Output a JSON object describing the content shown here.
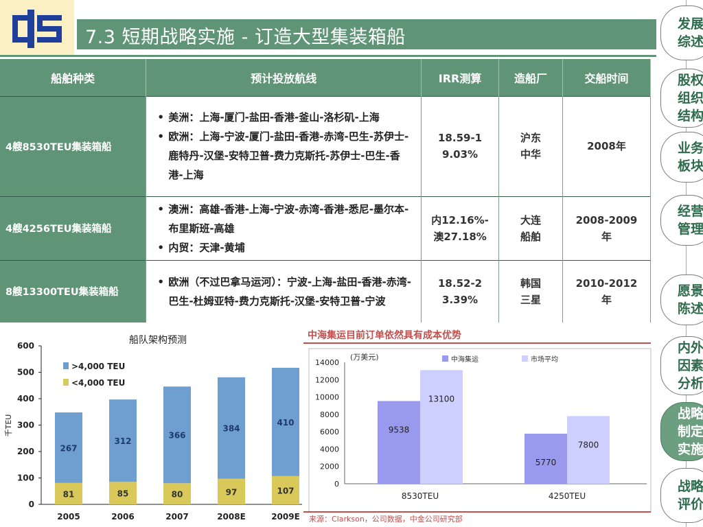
{
  "header": {
    "title": "7.3 短期战略实施 - 订造大型集装箱船"
  },
  "table": {
    "headers": [
      "船舶种类",
      "预计投放航线",
      "IRR测算",
      "造船厂",
      "交船时间"
    ],
    "rows": [
      {
        "type": "4艘8530TEU集装箱船",
        "routes": [
          "美洲：上海-厦门-盐田-香港-釜山-洛杉矶-上海",
          "欧洲：上海-宁波-厦门-盐田-香港-赤湾-巴生-苏伊士-鹿特丹-汉堡-安特卫普-费力克斯托-苏伊士-巴生-香港-上海"
        ],
        "irr": "18.59-19.03%",
        "yard": "沪东中华",
        "delivery": "2008年"
      },
      {
        "type": "4艘4256TEU集装箱船",
        "routes": [
          "澳洲：高雄-香港-上海-宁波-赤湾-香港-悉尼-墨尔本-布里斯班-高雄",
          "内贸：天津-黄埔"
        ],
        "irr": "内12.16%-澳27.18%",
        "yard": "大连船舶",
        "delivery": "2008-2009年"
      },
      {
        "type": "8艘13300TEU集装箱船",
        "routes": [
          "欧洲（不过巴拿马运河）：宁波-上海-盐田-香港-赤湾-巴生-杜姆亚特-费力克斯托-汉堡-安特卫普-宁波"
        ],
        "irr": "18.52-23.39%",
        "yard": "韩国三星",
        "delivery": "2010-2012年"
      }
    ]
  },
  "nav": {
    "items": [
      "发展综述",
      "股权组织结构",
      "业务板块",
      "经营管理",
      "愿景陈述",
      "内外因素分析",
      "战略制定实施",
      "战略评价"
    ],
    "active_index": 6
  },
  "chart_data": [
    {
      "type": "bar",
      "title": "船队架构预测",
      "ylabel": "千TEU",
      "ylim": [
        0,
        600
      ],
      "yticks": [
        0,
        100,
        200,
        300,
        400,
        500,
        600
      ],
      "categories": [
        "2005",
        "2006",
        "2007",
        "2008E",
        "2009E"
      ],
      "stacked": true,
      "series": [
        {
          "name": "<4,000 TEU",
          "values": [
            81,
            85,
            80,
            97,
            107
          ],
          "color": "#d8c95a"
        },
        {
          "name": ">4,000 TEU",
          "values": [
            267,
            312,
            366,
            384,
            410
          ],
          "color": "#6f9fd0"
        }
      ],
      "legend_position": "top-left"
    },
    {
      "type": "bar",
      "title": "中海集运目前订单依然具有成本优势",
      "unit_label": "(万美元)",
      "ylim": [
        0,
        14000
      ],
      "yticks": [
        0,
        2000,
        4000,
        6000,
        8000,
        10000,
        12000,
        14000
      ],
      "categories": [
        "8530TEU",
        "4250TEU"
      ],
      "series": [
        {
          "name": "中海集运",
          "values": [
            9538,
            5770
          ],
          "color": "#9999ee"
        },
        {
          "name": "市场平均",
          "values": [
            13100,
            7800
          ],
          "color": "#cccfff"
        }
      ],
      "source": "来源：Clarkson，公司数据，中金公司研究部",
      "legend_position": "top"
    }
  ]
}
